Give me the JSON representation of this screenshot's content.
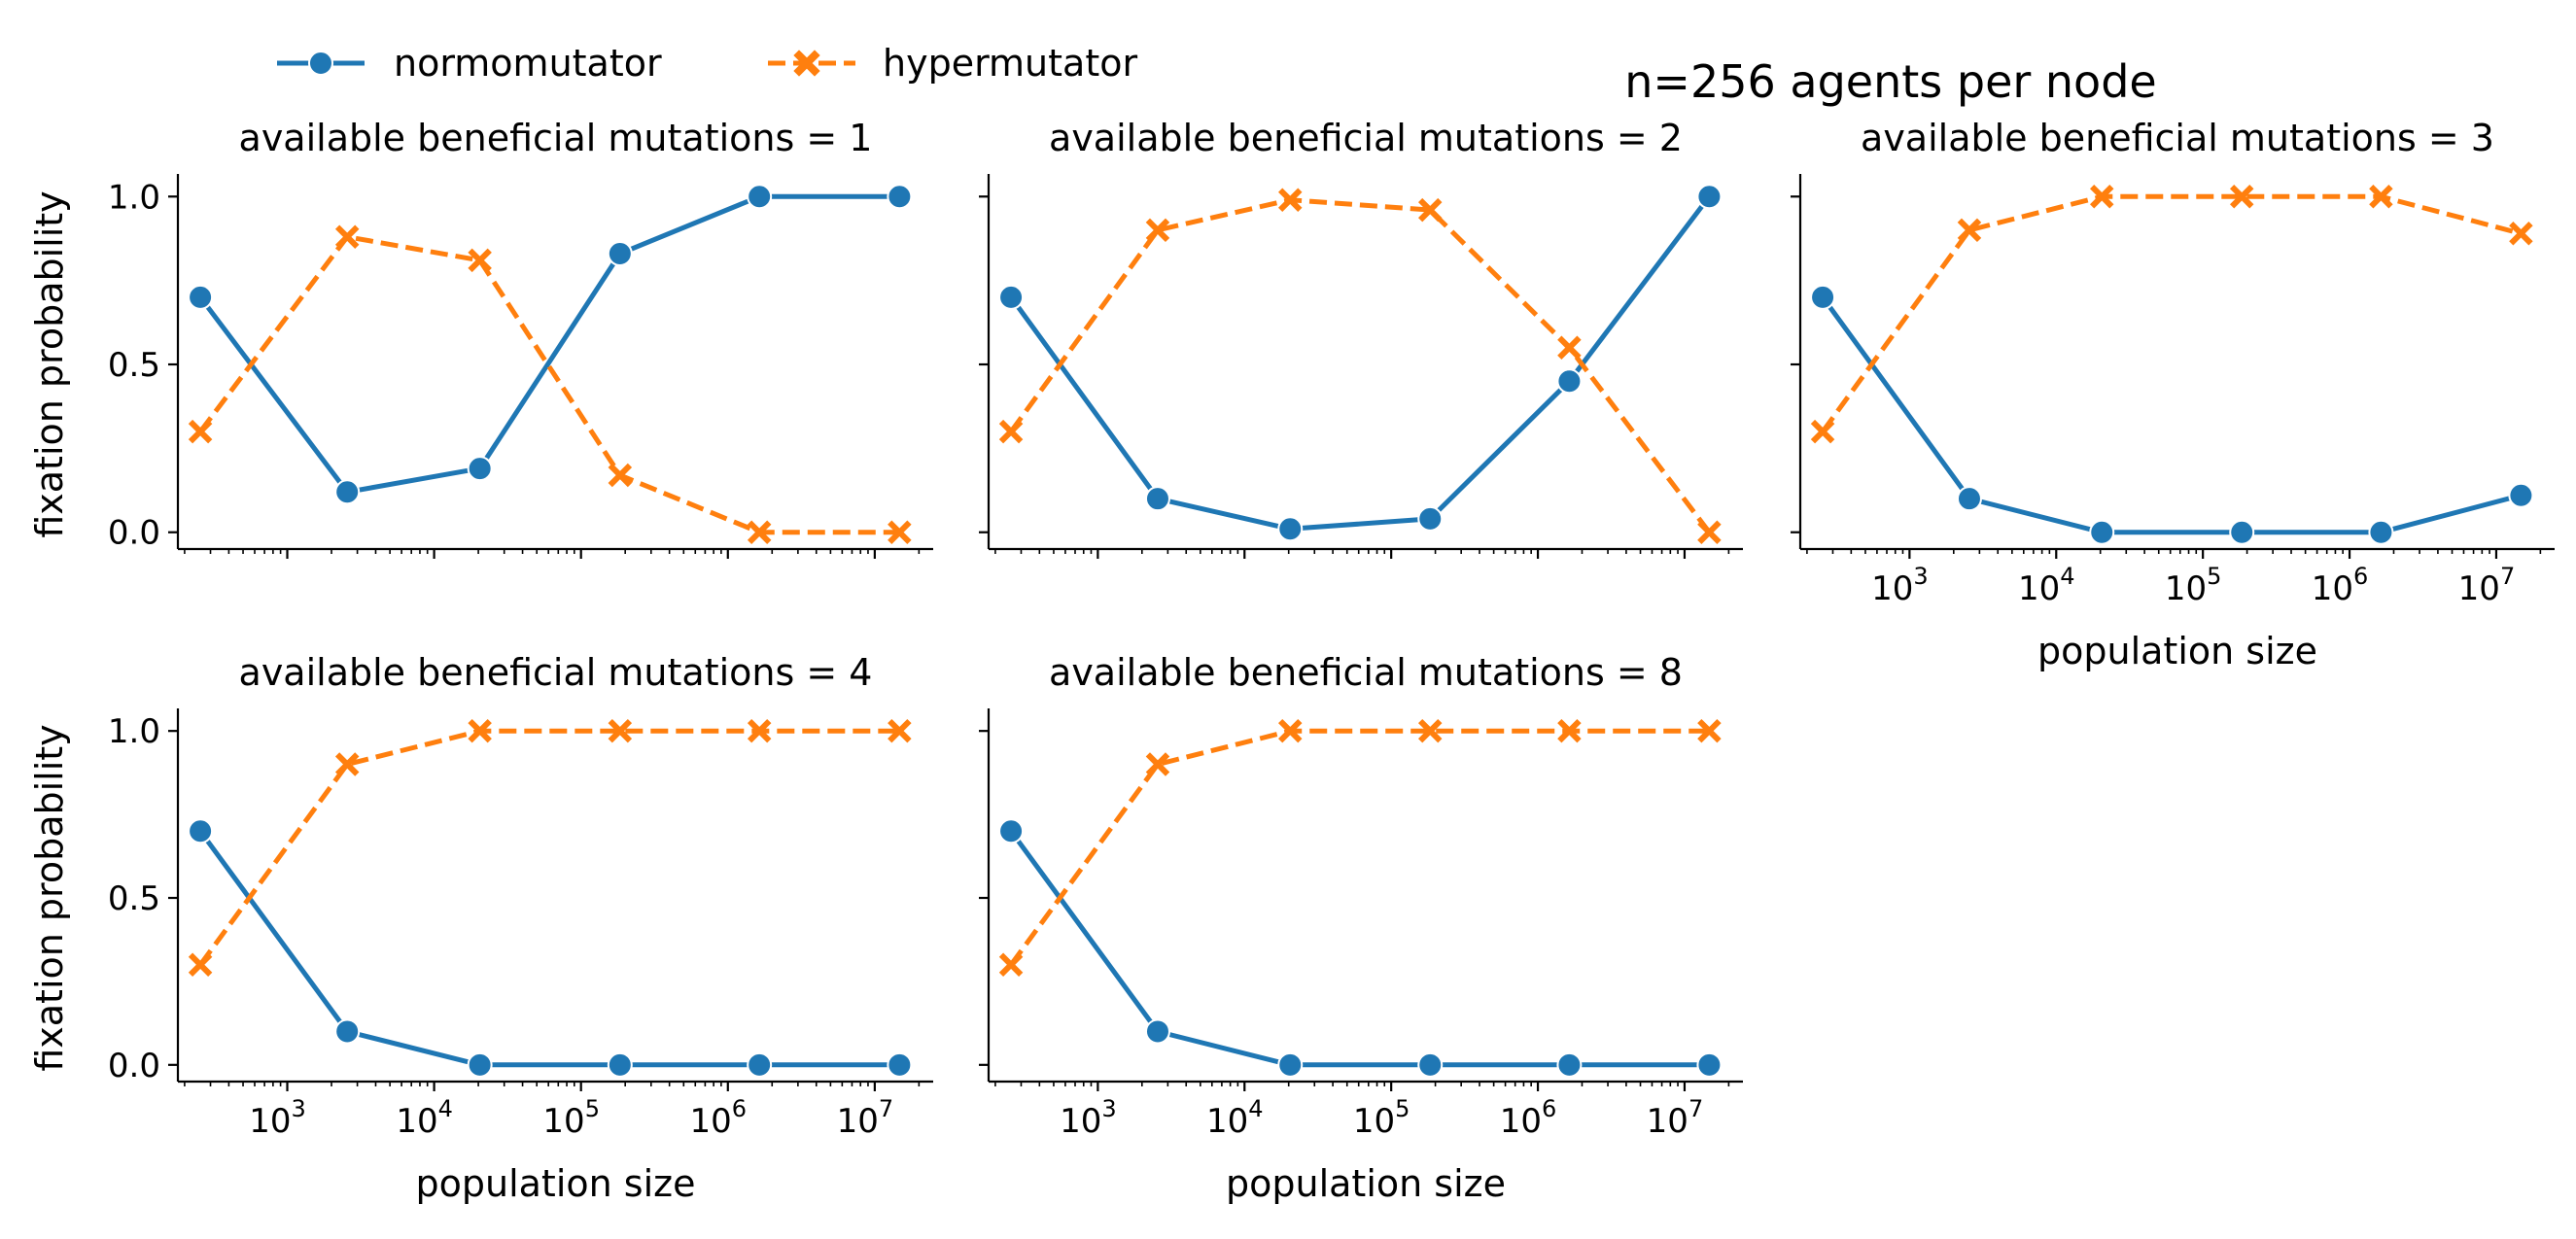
{
  "figure": {
    "suptitle": "n=256 agents per node"
  },
  "legend": {
    "placement": "top-left",
    "entries": [
      {
        "name": "normomutator",
        "color": "#1f77b4",
        "marker": "circle",
        "linestyle": "solid"
      },
      {
        "name": "hypermutator",
        "color": "#ff7f0e",
        "marker": "x",
        "linestyle": "dashed"
      }
    ]
  },
  "chart_data": [
    {
      "type": "line",
      "title": "available beneficial mutations = 1",
      "xlabel": "",
      "ylabel": "fixation probability",
      "xscale": "log",
      "x": [
        256,
        2560,
        20480,
        184320,
        1638400,
        14745600
      ],
      "xlim": [
        180,
        25000000
      ],
      "ylim": [
        -0.05,
        1.05
      ],
      "yticks": [
        0.0,
        0.5,
        1.0
      ],
      "ytick_labels": [
        "0.0",
        "0.5",
        "1.0"
      ],
      "xticks": [],
      "series": [
        {
          "name": "normomutator",
          "values": [
            0.7,
            0.12,
            0.19,
            0.83,
            1.0,
            1.0
          ]
        },
        {
          "name": "hypermutator",
          "values": [
            0.3,
            0.88,
            0.81,
            0.17,
            0.0,
            0.0
          ]
        }
      ]
    },
    {
      "type": "line",
      "title": "available beneficial mutations = 2",
      "xlabel": "",
      "ylabel": "",
      "xscale": "log",
      "x": [
        256,
        2560,
        20480,
        184320,
        1638400,
        14745600
      ],
      "xlim": [
        180,
        25000000
      ],
      "ylim": [
        -0.05,
        1.05
      ],
      "yticks": [
        0.0,
        0.5,
        1.0
      ],
      "ytick_labels": [],
      "xticks": [],
      "series": [
        {
          "name": "normomutator",
          "values": [
            0.7,
            0.1,
            0.01,
            0.04,
            0.45,
            1.0
          ]
        },
        {
          "name": "hypermutator",
          "values": [
            0.3,
            0.9,
            0.99,
            0.96,
            0.55,
            0.0
          ]
        }
      ]
    },
    {
      "type": "line",
      "title": "available beneficial mutations = 3",
      "xlabel": "population size",
      "ylabel": "",
      "xscale": "log",
      "x": [
        256,
        2560,
        20480,
        184320,
        1638400,
        14745600
      ],
      "xlim": [
        180,
        25000000
      ],
      "ylim": [
        -0.05,
        1.05
      ],
      "yticks": [
        0.0,
        0.5,
        1.0
      ],
      "ytick_labels": [],
      "xticks": [
        3,
        4,
        5,
        6,
        7
      ],
      "series": [
        {
          "name": "normomutator",
          "values": [
            0.7,
            0.1,
            0.0,
            0.0,
            0.0,
            0.11
          ]
        },
        {
          "name": "hypermutator",
          "values": [
            0.3,
            0.9,
            1.0,
            1.0,
            1.0,
            0.89
          ]
        }
      ]
    },
    {
      "type": "line",
      "title": "available beneficial mutations = 4",
      "xlabel": "population size",
      "ylabel": "fixation probability",
      "xscale": "log",
      "x": [
        256,
        2560,
        20480,
        184320,
        1638400,
        14745600
      ],
      "xlim": [
        180,
        25000000
      ],
      "ylim": [
        -0.05,
        1.05
      ],
      "yticks": [
        0.0,
        0.5,
        1.0
      ],
      "ytick_labels": [
        "0.0",
        "0.5",
        "1.0"
      ],
      "xticks": [
        3,
        4,
        5,
        6,
        7
      ],
      "series": [
        {
          "name": "normomutator",
          "values": [
            0.7,
            0.1,
            0.0,
            0.0,
            0.0,
            0.0
          ]
        },
        {
          "name": "hypermutator",
          "values": [
            0.3,
            0.9,
            1.0,
            1.0,
            1.0,
            1.0
          ]
        }
      ]
    },
    {
      "type": "line",
      "title": "available beneficial mutations = 8",
      "xlabel": "population size",
      "ylabel": "",
      "xscale": "log",
      "x": [
        256,
        2560,
        20480,
        184320,
        1638400,
        14745600
      ],
      "xlim": [
        180,
        25000000
      ],
      "ylim": [
        -0.05,
        1.05
      ],
      "yticks": [
        0.0,
        0.5,
        1.0
      ],
      "ytick_labels": [],
      "xticks": [
        3,
        4,
        5,
        6,
        7
      ],
      "series": [
        {
          "name": "normomutator",
          "values": [
            0.7,
            0.1,
            0.0,
            0.0,
            0.0,
            0.0
          ]
        },
        {
          "name": "hypermutator",
          "values": [
            0.3,
            0.9,
            1.0,
            1.0,
            1.0,
            1.0
          ]
        }
      ]
    }
  ]
}
